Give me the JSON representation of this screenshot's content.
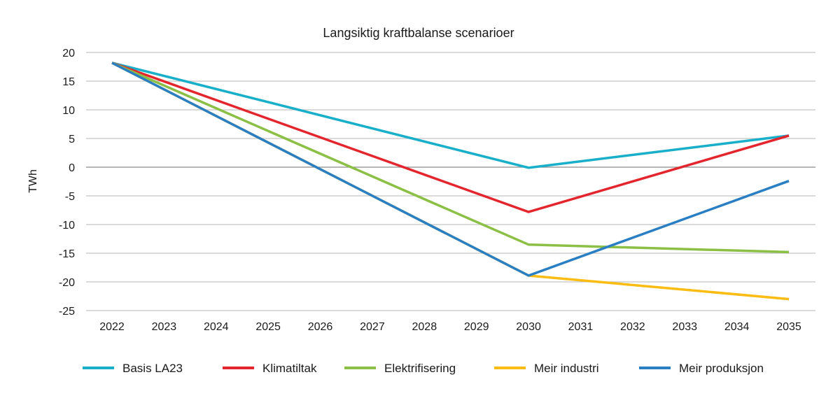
{
  "chart_data": {
    "type": "line",
    "title": "Langsiktig kraftbalanse scenarioer",
    "xlabel": "",
    "ylabel": "TWh",
    "x": [
      2022,
      2023,
      2024,
      2025,
      2026,
      2027,
      2028,
      2029,
      2030,
      2031,
      2032,
      2033,
      2034,
      2035
    ],
    "ylim": [
      -25,
      20
    ],
    "yticks": [
      20,
      15,
      10,
      5,
      0,
      -5,
      -10,
      -15,
      -20,
      -25
    ],
    "grid": true,
    "legend_placement": "bottom",
    "series": [
      {
        "name": "Basis LA23",
        "color": "#1aafc9",
        "points": [
          [
            2022,
            18.2
          ],
          [
            2030,
            -0.1
          ],
          [
            2035,
            5.5
          ]
        ]
      },
      {
        "name": "Klimatiltak",
        "color": "#e3262e",
        "points": [
          [
            2022,
            18.2
          ],
          [
            2030,
            -7.8
          ],
          [
            2035,
            5.5
          ]
        ]
      },
      {
        "name": "Elektrifisering",
        "color": "#8cbf45",
        "points": [
          [
            2022,
            18.2
          ],
          [
            2030,
            -13.5
          ],
          [
            2035,
            -14.8
          ]
        ]
      },
      {
        "name": "Meir industri",
        "color": "#fbbd14",
        "points": [
          [
            2022,
            18.2
          ],
          [
            2030,
            -18.9
          ],
          [
            2035,
            -23.0
          ]
        ]
      },
      {
        "name": "Meir produksjon",
        "color": "#2a7fc2",
        "points": [
          [
            2022,
            18.2
          ],
          [
            2030,
            -18.9
          ],
          [
            2035,
            -2.4
          ]
        ]
      }
    ]
  }
}
